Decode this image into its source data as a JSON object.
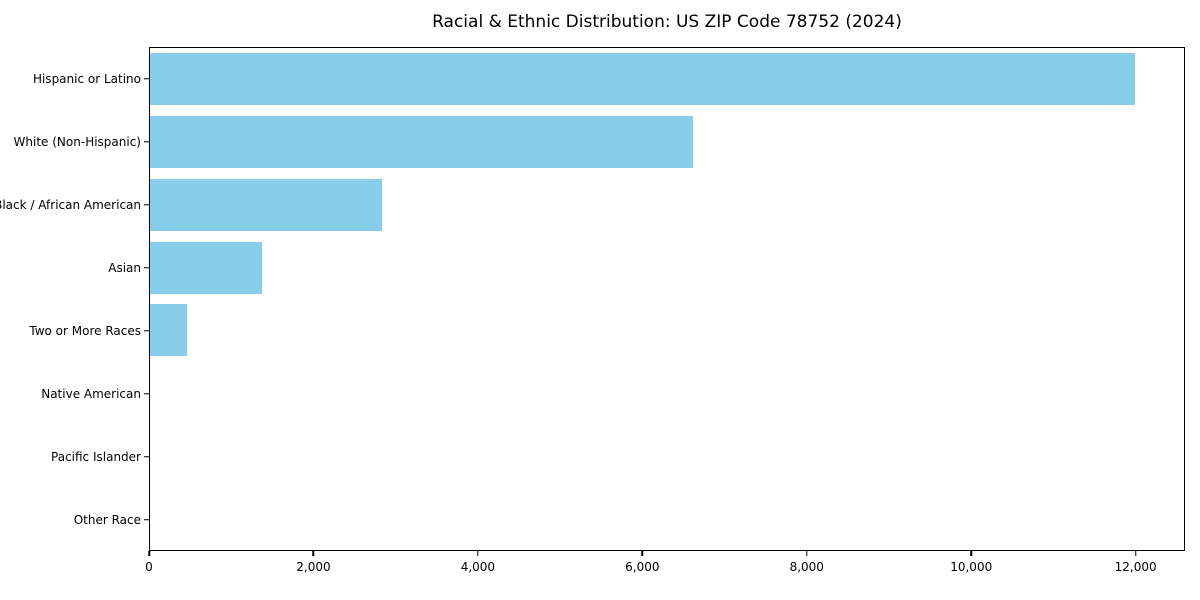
{
  "chart_data": {
    "type": "bar",
    "orientation": "horizontal",
    "title": "Racial & Ethnic Distribution: US ZIP Code 78752 (2024)",
    "categories": [
      "Hispanic or Latino",
      "White (Non-Hispanic)",
      "Black / African American",
      "Asian",
      "Two or More Races",
      "Native American",
      "Pacific Islander",
      "Other Race"
    ],
    "values": [
      12000,
      6620,
      2830,
      1360,
      455,
      0,
      0,
      0
    ],
    "xlabel": "",
    "ylabel": "",
    "xlim": [
      0,
      12600
    ],
    "xticks": [
      {
        "value": 0,
        "label": "0"
      },
      {
        "value": 2000,
        "label": "2,000"
      },
      {
        "value": 4000,
        "label": "4,000"
      },
      {
        "value": 6000,
        "label": "6,000"
      },
      {
        "value": 8000,
        "label": "8,000"
      },
      {
        "value": 10000,
        "label": "10,000"
      },
      {
        "value": 12000,
        "label": "12,000"
      }
    ],
    "grid": false,
    "legend_position": "none",
    "bar_color": "#87CEEB"
  },
  "colors": {
    "bar": "#87CEEB",
    "spine": "#000000",
    "text": "#000000",
    "background": "#ffffff"
  }
}
